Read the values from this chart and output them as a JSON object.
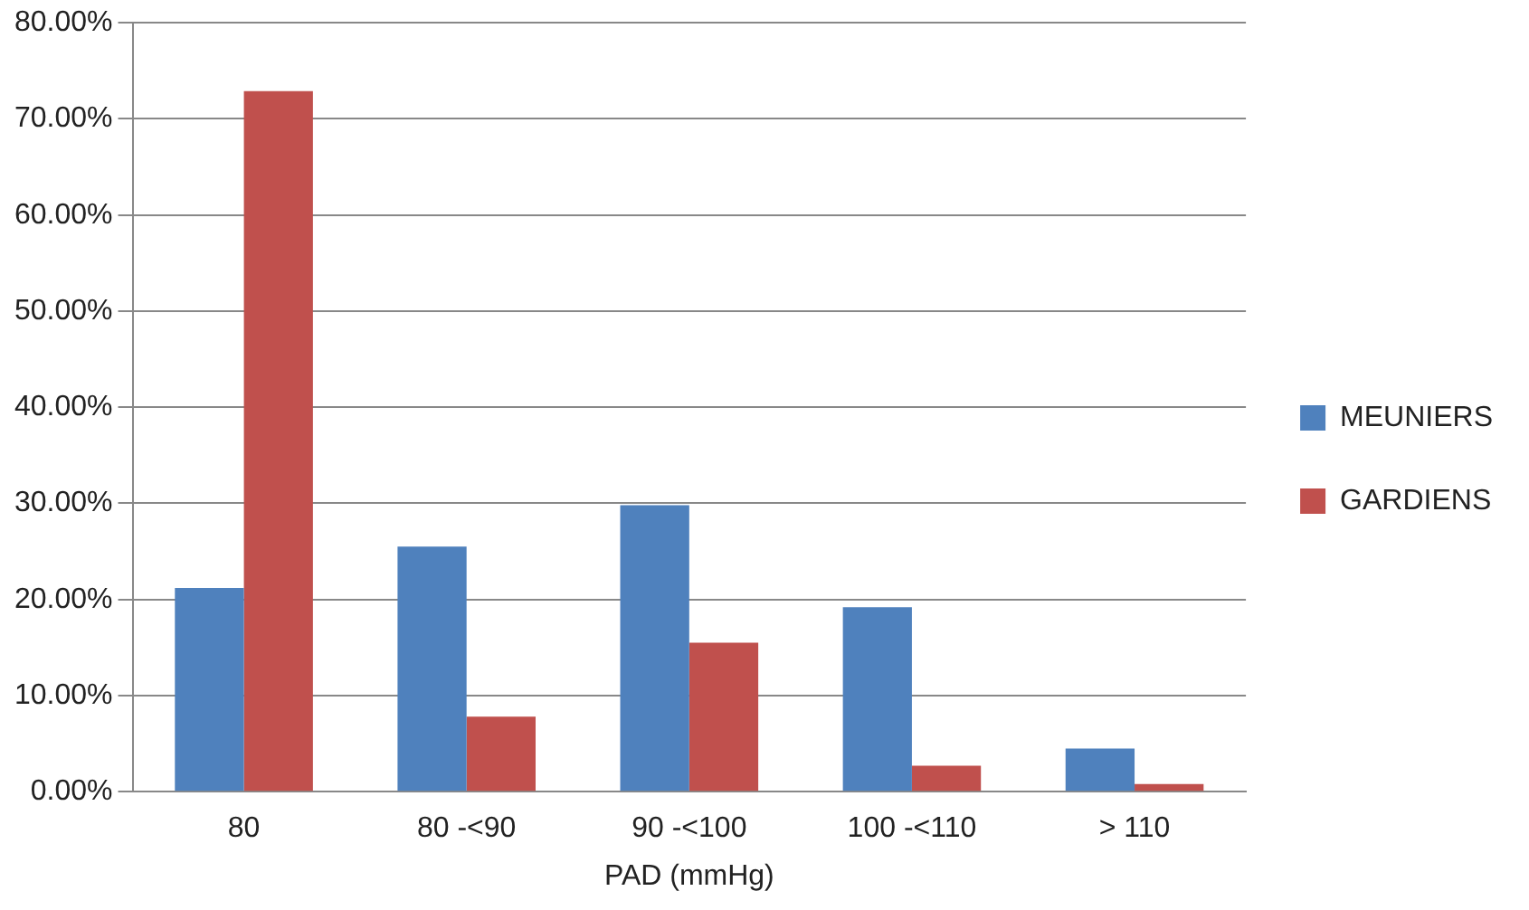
{
  "chart_data": {
    "type": "bar",
    "xlabel": "PAD (mmHg)",
    "categories": [
      "80",
      "80 -<90",
      "90 -<100",
      "100 -<110",
      "> 110"
    ],
    "series": [
      {
        "name": "MEUNIERS",
        "color": "#4f81bd",
        "values": [
          21.2,
          25.5,
          29.8,
          19.2,
          4.5
        ]
      },
      {
        "name": "GARDIENS",
        "color": "#c0504d",
        "values": [
          72.9,
          7.8,
          15.5,
          2.7,
          0.8
        ]
      }
    ],
    "ylim": [
      0,
      80
    ],
    "yticks": [
      {
        "value": 0,
        "label": "0.00%"
      },
      {
        "value": 10,
        "label": "10.00%"
      },
      {
        "value": 20,
        "label": "20.00%"
      },
      {
        "value": 30,
        "label": "30.00%"
      },
      {
        "value": 40,
        "label": "40.00%"
      },
      {
        "value": 50,
        "label": "50.00%"
      },
      {
        "value": 60,
        "label": "60.00%"
      },
      {
        "value": 70,
        "label": "70.00%"
      },
      {
        "value": 80,
        "label": "80.00%"
      }
    ],
    "grid": "y",
    "legend": "right"
  }
}
